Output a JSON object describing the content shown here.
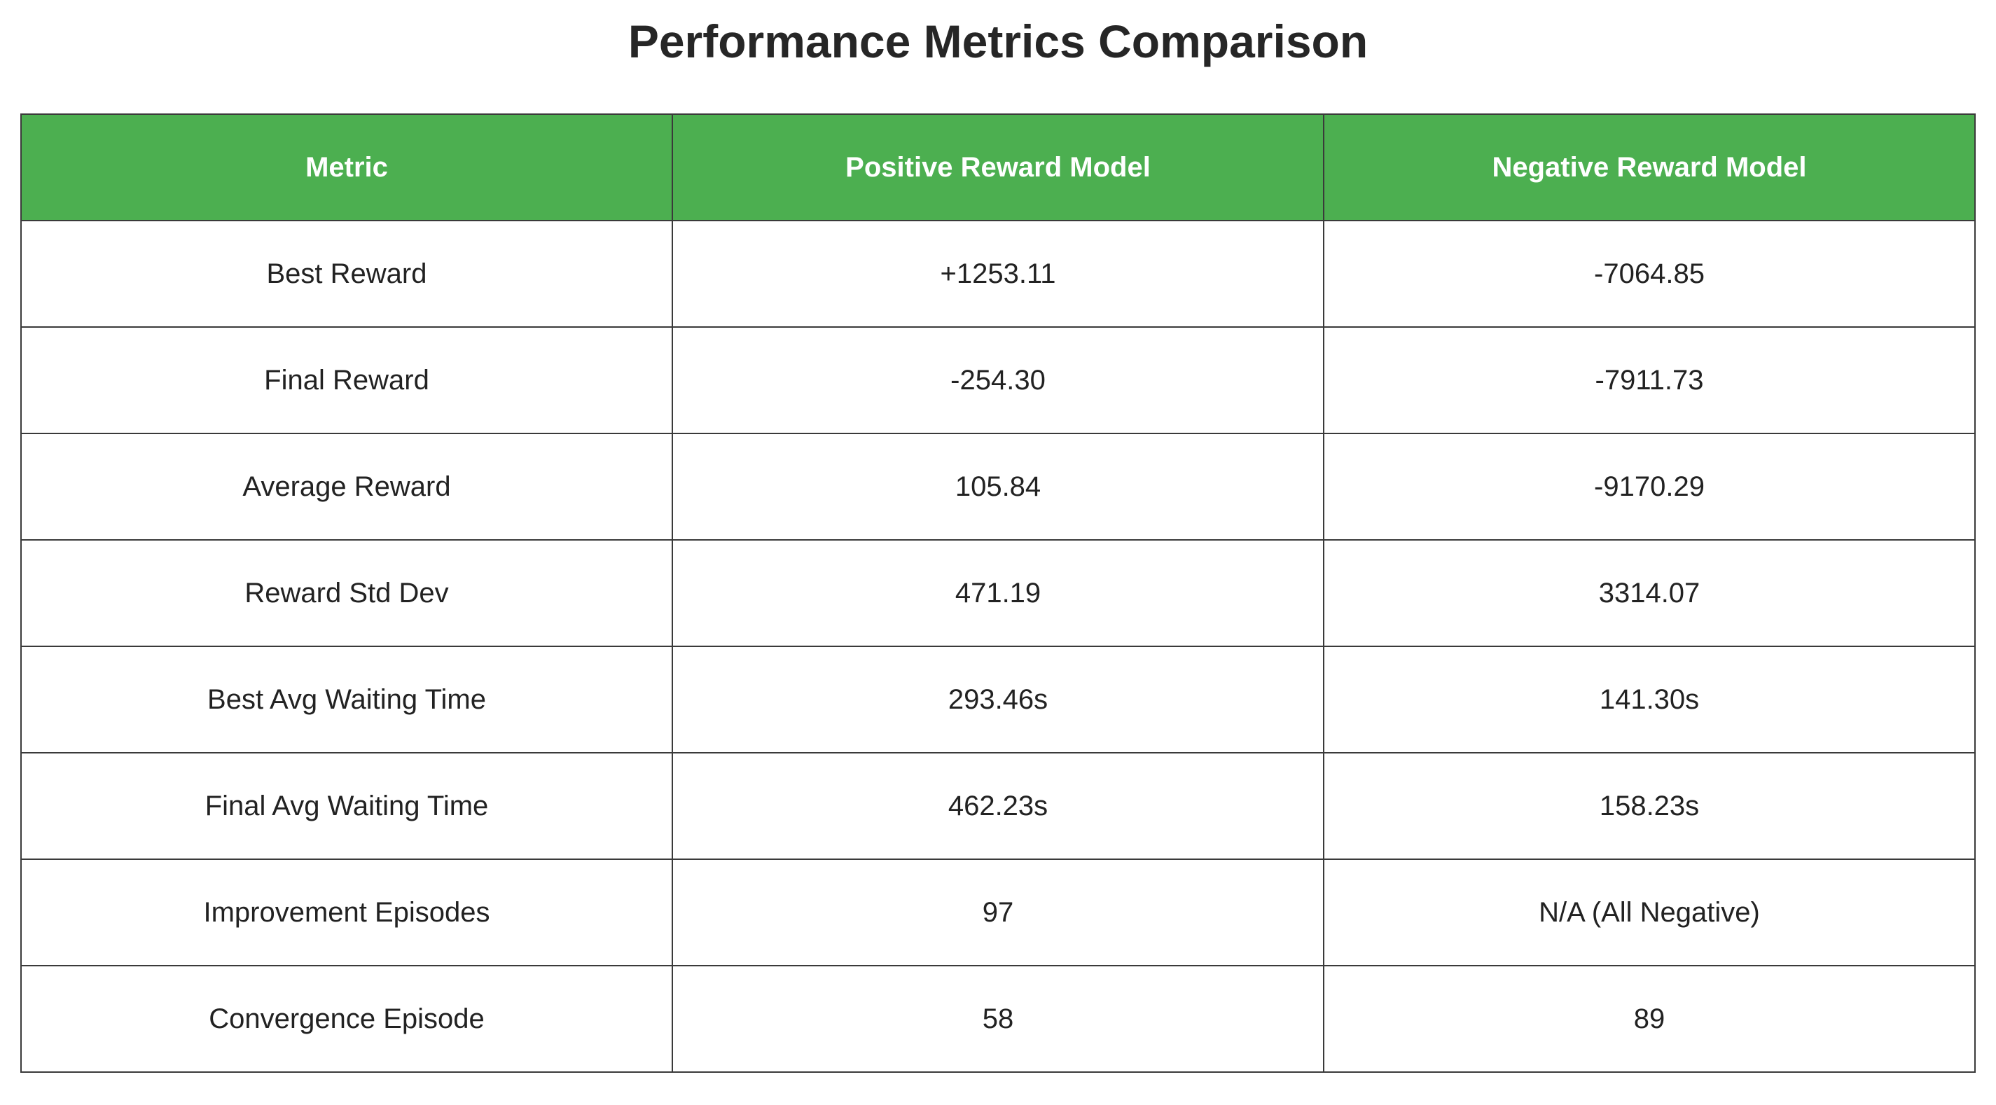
{
  "header_color": "#4CAF50",
  "chart_data": {
    "type": "table",
    "title": "Performance Metrics Comparison",
    "columns": [
      "Metric",
      "Positive Reward Model",
      "Negative Reward Model"
    ],
    "rows": [
      [
        "Best Reward",
        "+1253.11",
        "-7064.85"
      ],
      [
        "Final Reward",
        "-254.30",
        "-7911.73"
      ],
      [
        "Average Reward",
        "105.84",
        "-9170.29"
      ],
      [
        "Reward Std Dev",
        "471.19",
        "3314.07"
      ],
      [
        "Best Avg Waiting Time",
        "293.46s",
        "141.30s"
      ],
      [
        "Final Avg Waiting Time",
        "462.23s",
        "158.23s"
      ],
      [
        "Improvement Episodes",
        "97",
        "N/A (All Negative)"
      ],
      [
        "Convergence Episode",
        "58",
        "89"
      ]
    ]
  }
}
